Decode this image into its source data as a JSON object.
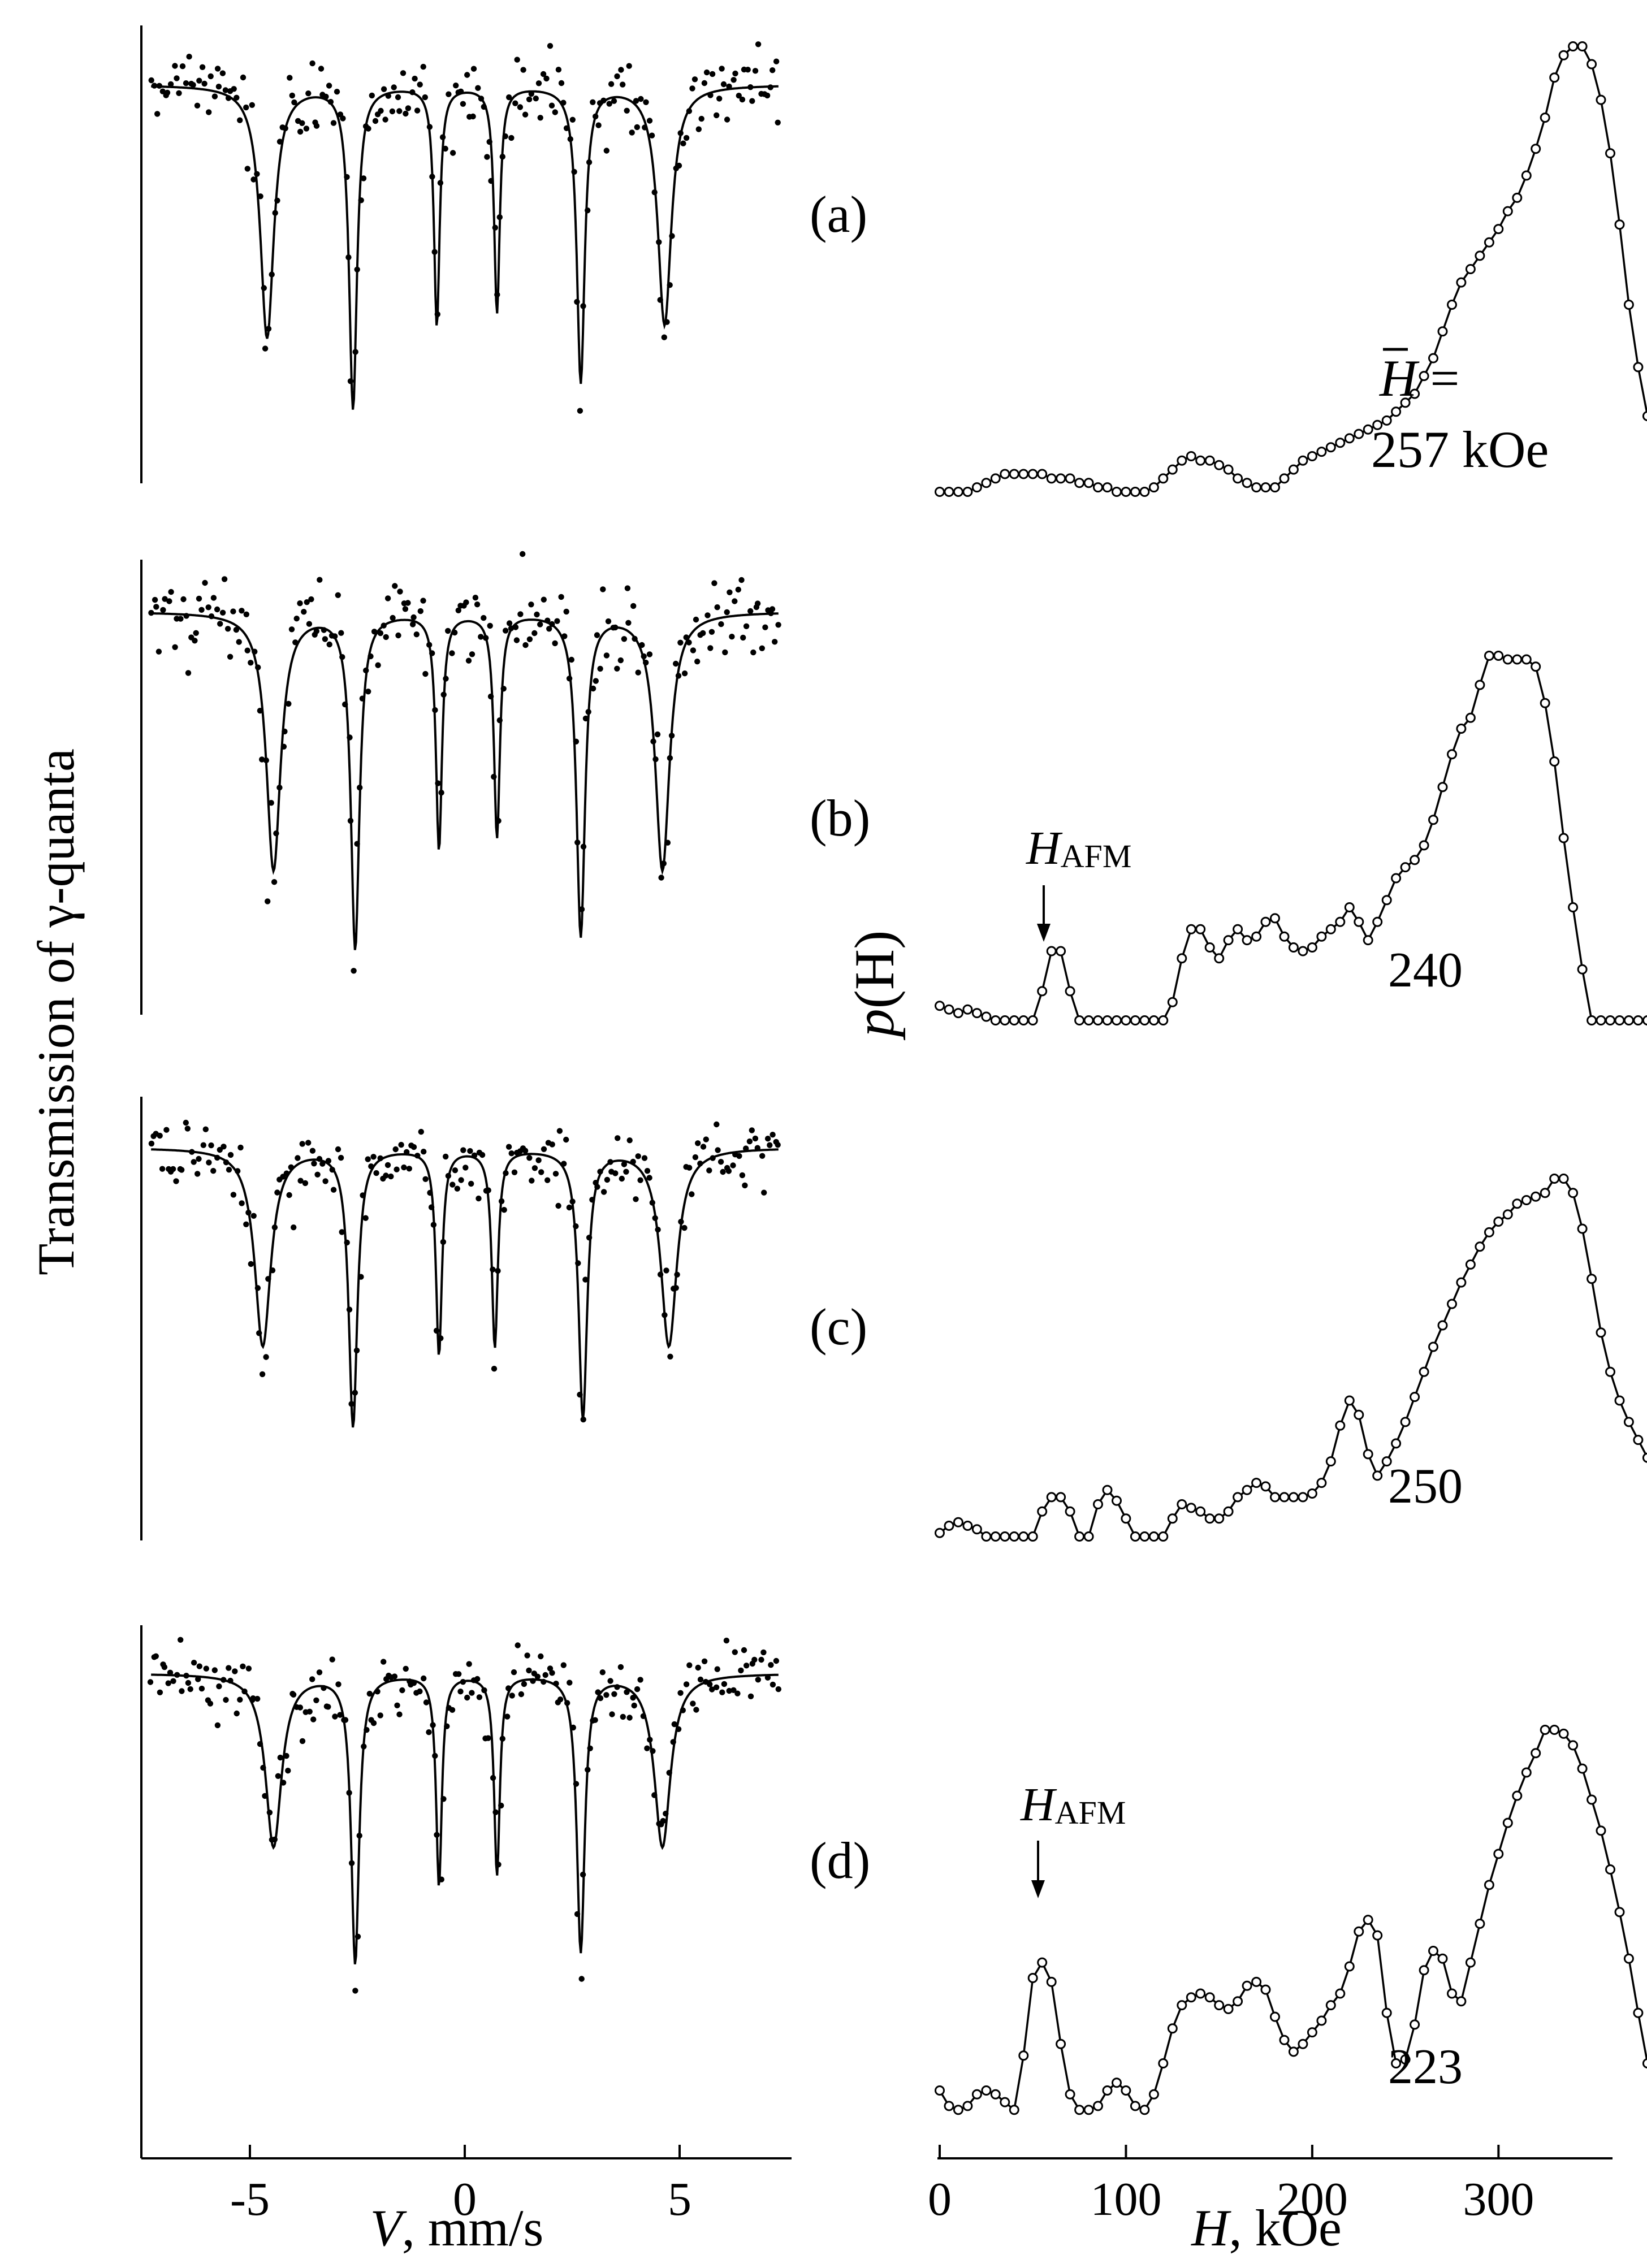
{
  "chart_data": [
    {
      "type": "scatter",
      "panel": "left",
      "title": "",
      "xlabel_italic": "V",
      "xlabel_rest": ", mm/s",
      "ylabel": "Transmission of γ-quanta",
      "xlim": [
        -7.5,
        7.5
      ],
      "x_ticks": [
        -5,
        0,
        5
      ],
      "x_tick_labels": [
        "-5",
        "0",
        "5"
      ],
      "spectra": [
        {
          "label": "(a)",
          "line_positions": [
            -4.6,
            -2.6,
            -0.65,
            0.75,
            2.7,
            4.65
          ],
          "line_depths": [
            0.58,
            0.74,
            0.55,
            0.52,
            0.68,
            0.55
          ],
          "line_widths": [
            0.38,
            0.22,
            0.16,
            0.16,
            0.22,
            0.38
          ],
          "series": [
            {
              "name": "experiment",
              "style": "dots"
            },
            {
              "name": "fit",
              "style": "solid line"
            }
          ]
        },
        {
          "label": "(b)",
          "line_positions": [
            -4.45,
            -2.55,
            -0.6,
            0.75,
            2.7,
            4.6
          ],
          "line_depths": [
            0.6,
            0.78,
            0.55,
            0.52,
            0.75,
            0.6
          ],
          "line_widths": [
            0.4,
            0.24,
            0.17,
            0.17,
            0.24,
            0.4
          ],
          "series": [
            {
              "name": "experiment",
              "style": "dots"
            },
            {
              "name": "fit",
              "style": "solid line"
            }
          ]
        },
        {
          "label": "(c)",
          "line_positions": [
            -4.7,
            -2.6,
            -0.6,
            0.7,
            2.75,
            4.75
          ],
          "line_depths": [
            0.5,
            0.7,
            0.52,
            0.5,
            0.68,
            0.5
          ],
          "line_widths": [
            0.45,
            0.24,
            0.17,
            0.17,
            0.24,
            0.45
          ],
          "series": [
            {
              "name": "experiment",
              "style": "dots"
            },
            {
              "name": "fit",
              "style": "solid line"
            }
          ]
        },
        {
          "label": "(d)",
          "line_positions": [
            -4.45,
            -2.55,
            -0.6,
            0.75,
            2.7,
            4.6
          ],
          "line_depths": [
            0.45,
            0.75,
            0.55,
            0.52,
            0.72,
            0.45
          ],
          "line_widths": [
            0.45,
            0.22,
            0.16,
            0.16,
            0.22,
            0.45
          ],
          "series": [
            {
              "name": "experiment",
              "style": "dots"
            },
            {
              "name": "fit",
              "style": "solid line"
            }
          ]
        }
      ]
    },
    {
      "type": "line",
      "panel": "right",
      "title": "",
      "xlabel_italic": "H",
      "xlabel_rest": ", kOe",
      "ylabel_italic_p": "p",
      "ylabel_rest": "(H)",
      "xlim": [
        0,
        360
      ],
      "x_ticks": [
        0,
        100,
        200,
        300
      ],
      "x_tick_labels": [
        "0",
        "100",
        "200",
        "300"
      ],
      "marker": "open circle",
      "h_step": 5,
      "average_field_symbol": "H",
      "average_field_eq": " =",
      "annotation_label": "H",
      "annotation_sub": "AFM",
      "series": [
        {
          "label": "(a)",
          "avg_text": "257 kOe",
          "values": [
            0.0,
            0.0,
            0.0,
            0.0,
            0.01,
            0.02,
            0.03,
            0.04,
            0.04,
            0.04,
            0.04,
            0.04,
            0.03,
            0.03,
            0.03,
            0.02,
            0.02,
            0.01,
            0.01,
            0.0,
            0.0,
            0.0,
            0.0,
            0.01,
            0.03,
            0.05,
            0.07,
            0.08,
            0.07,
            0.07,
            0.06,
            0.05,
            0.03,
            0.02,
            0.01,
            0.01,
            0.01,
            0.03,
            0.05,
            0.07,
            0.08,
            0.09,
            0.1,
            0.11,
            0.12,
            0.13,
            0.14,
            0.15,
            0.16,
            0.18,
            0.2,
            0.22,
            0.26,
            0.3,
            0.36,
            0.42,
            0.47,
            0.5,
            0.53,
            0.56,
            0.59,
            0.63,
            0.66,
            0.71,
            0.77,
            0.84,
            0.93,
            0.98,
            1.0,
            1.0,
            0.96,
            0.88,
            0.76,
            0.6,
            0.42,
            0.28,
            0.17,
            0.09,
            0.04,
            0.02,
            0.01,
            0.0,
            0.0
          ]
        },
        {
          "label": "(b)",
          "avg_text": "240",
          "values": [
            0.04,
            0.03,
            0.02,
            0.03,
            0.02,
            0.01,
            0.0,
            0.0,
            0.0,
            0.0,
            0.0,
            0.08,
            0.19,
            0.19,
            0.08,
            0.0,
            0.0,
            0.0,
            0.0,
            0.0,
            0.0,
            0.0,
            0.0,
            0.0,
            0.0,
            0.05,
            0.17,
            0.25,
            0.25,
            0.2,
            0.17,
            0.22,
            0.25,
            0.22,
            0.23,
            0.27,
            0.28,
            0.23,
            0.2,
            0.19,
            0.2,
            0.23,
            0.25,
            0.27,
            0.31,
            0.27,
            0.22,
            0.27,
            0.33,
            0.39,
            0.42,
            0.44,
            0.48,
            0.55,
            0.64,
            0.73,
            0.8,
            0.83,
            0.92,
            1.0,
            1.0,
            0.99,
            0.99,
            0.99,
            0.97,
            0.87,
            0.71,
            0.5,
            0.31,
            0.14,
            0.0,
            0.0,
            0.0,
            0.0,
            0.0,
            0.0,
            0.0,
            0.0,
            0.0,
            0.0,
            0.0,
            0.0,
            0.0
          ]
        },
        {
          "label": "(c)",
          "avg_text": "250",
          "values": [
            0.01,
            0.03,
            0.04,
            0.03,
            0.02,
            0.0,
            0.0,
            0.0,
            0.0,
            0.0,
            0.0,
            0.07,
            0.11,
            0.11,
            0.07,
            0.0,
            0.0,
            0.09,
            0.13,
            0.1,
            0.05,
            0.0,
            0.0,
            0.0,
            0.0,
            0.05,
            0.09,
            0.08,
            0.07,
            0.05,
            0.05,
            0.07,
            0.11,
            0.13,
            0.15,
            0.14,
            0.11,
            0.11,
            0.11,
            0.11,
            0.12,
            0.15,
            0.21,
            0.31,
            0.38,
            0.34,
            0.23,
            0.17,
            0.21,
            0.26,
            0.32,
            0.39,
            0.46,
            0.53,
            0.59,
            0.65,
            0.71,
            0.76,
            0.81,
            0.85,
            0.88,
            0.9,
            0.93,
            0.94,
            0.95,
            0.96,
            1.0,
            1.0,
            0.96,
            0.86,
            0.72,
            0.57,
            0.46,
            0.38,
            0.32,
            0.27,
            0.22,
            0.17,
            0.12,
            0.06,
            0.01,
            0.0,
            0.0
          ]
        },
        {
          "label": "(d)",
          "avg_text": "223",
          "values": [
            0.07,
            0.03,
            0.02,
            0.03,
            0.06,
            0.07,
            0.06,
            0.04,
            0.02,
            0.16,
            0.36,
            0.4,
            0.35,
            0.19,
            0.06,
            0.02,
            0.02,
            0.03,
            0.07,
            0.09,
            0.07,
            0.03,
            0.02,
            0.06,
            0.14,
            0.23,
            0.29,
            0.31,
            0.32,
            0.31,
            0.29,
            0.28,
            0.3,
            0.34,
            0.35,
            0.33,
            0.26,
            0.2,
            0.17,
            0.19,
            0.22,
            0.25,
            0.29,
            0.32,
            0.39,
            0.48,
            0.51,
            0.47,
            0.27,
            0.14,
            0.15,
            0.24,
            0.38,
            0.43,
            0.41,
            0.32,
            0.3,
            0.4,
            0.5,
            0.6,
            0.68,
            0.76,
            0.83,
            0.89,
            0.94,
            1.0,
            1.0,
            0.99,
            0.96,
            0.9,
            0.82,
            0.74,
            0.64,
            0.53,
            0.41,
            0.27,
            0.14,
            0.03,
            0.0,
            0.0,
            0.0,
            0.01,
            0.01
          ]
        }
      ]
    }
  ]
}
